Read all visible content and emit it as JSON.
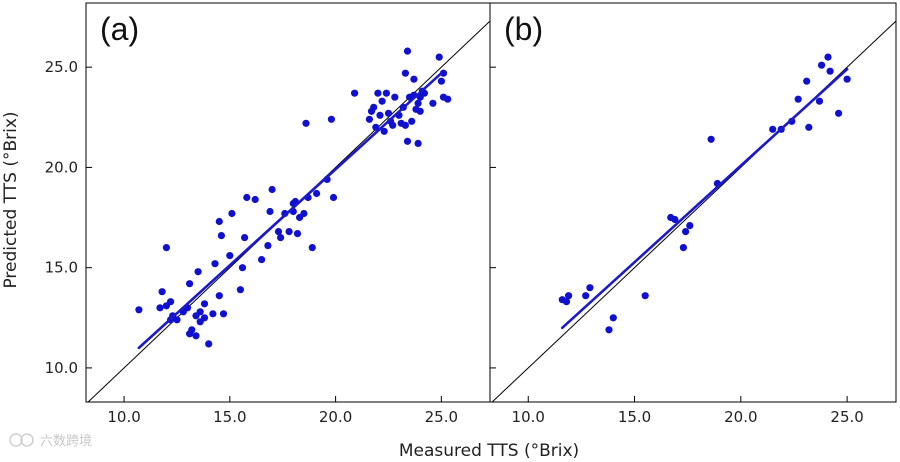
{
  "chart_data": [
    {
      "type": "scatter",
      "panel_label": "(a)",
      "xlim": [
        8.2,
        27.3
      ],
      "ylim": [
        8.3,
        28.2
      ],
      "x_ticks": [
        10.0,
        15.0,
        20.0,
        25.0
      ],
      "y_ticks": [
        10.0,
        15.0,
        20.0,
        25.0
      ],
      "identity_line": true,
      "regression_line": {
        "x": [
          10.7,
          25.0
        ],
        "y": [
          11.0,
          24.7
        ]
      },
      "marker_color": "#1010d0",
      "line_color": "#1a1acc",
      "points": [
        [
          10.7,
          12.9
        ],
        [
          11.7,
          13.0
        ],
        [
          11.8,
          13.8
        ],
        [
          12.0,
          13.1
        ],
        [
          12.0,
          16.0
        ],
        [
          12.2,
          12.4
        ],
        [
          12.2,
          13.3
        ],
        [
          12.3,
          12.6
        ],
        [
          12.5,
          12.4
        ],
        [
          12.8,
          12.8
        ],
        [
          13.0,
          13.0
        ],
        [
          13.1,
          11.7
        ],
        [
          13.1,
          14.2
        ],
        [
          13.2,
          11.9
        ],
        [
          13.4,
          12.6
        ],
        [
          13.4,
          11.6
        ],
        [
          13.5,
          14.8
        ],
        [
          13.6,
          12.3
        ],
        [
          13.6,
          12.8
        ],
        [
          13.8,
          12.5
        ],
        [
          13.8,
          13.2
        ],
        [
          14.0,
          11.2
        ],
        [
          14.2,
          12.7
        ],
        [
          14.3,
          15.2
        ],
        [
          14.5,
          13.6
        ],
        [
          14.5,
          17.3
        ],
        [
          14.6,
          16.6
        ],
        [
          14.7,
          12.7
        ],
        [
          15.0,
          15.6
        ],
        [
          15.1,
          17.7
        ],
        [
          15.5,
          13.9
        ],
        [
          15.6,
          15.0
        ],
        [
          15.7,
          16.5
        ],
        [
          15.8,
          18.5
        ],
        [
          16.2,
          18.4
        ],
        [
          16.5,
          15.4
        ],
        [
          16.8,
          16.1
        ],
        [
          16.9,
          17.8
        ],
        [
          17.0,
          18.9
        ],
        [
          17.3,
          16.8
        ],
        [
          17.4,
          16.5
        ],
        [
          17.6,
          17.7
        ],
        [
          17.8,
          16.8
        ],
        [
          18.0,
          18.2
        ],
        [
          18.0,
          17.8
        ],
        [
          18.1,
          18.3
        ],
        [
          18.2,
          16.7
        ],
        [
          18.3,
          17.5
        ],
        [
          18.5,
          17.7
        ],
        [
          18.6,
          22.2
        ],
        [
          18.7,
          18.5
        ],
        [
          18.9,
          16.0
        ],
        [
          19.1,
          18.7
        ],
        [
          19.6,
          19.4
        ],
        [
          19.8,
          22.4
        ],
        [
          19.9,
          18.5
        ],
        [
          20.9,
          23.7
        ],
        [
          21.6,
          22.4
        ],
        [
          21.7,
          22.8
        ],
        [
          21.8,
          23.0
        ],
        [
          21.9,
          22.0
        ],
        [
          22.0,
          23.7
        ],
        [
          22.1,
          22.6
        ],
        [
          22.2,
          23.3
        ],
        [
          22.3,
          21.8
        ],
        [
          22.4,
          23.7
        ],
        [
          22.5,
          22.7
        ],
        [
          22.6,
          22.3
        ],
        [
          22.7,
          22.1
        ],
        [
          22.8,
          23.5
        ],
        [
          23.0,
          22.6
        ],
        [
          23.1,
          22.2
        ],
        [
          23.2,
          23.0
        ],
        [
          23.3,
          24.7
        ],
        [
          23.3,
          22.1
        ],
        [
          23.4,
          25.8
        ],
        [
          23.4,
          21.3
        ],
        [
          23.5,
          23.5
        ],
        [
          23.6,
          22.3
        ],
        [
          23.7,
          24.4
        ],
        [
          23.7,
          23.6
        ],
        [
          23.8,
          22.9
        ],
        [
          23.9,
          23.2
        ],
        [
          23.9,
          21.2
        ],
        [
          24.0,
          23.5
        ],
        [
          24.0,
          22.8
        ],
        [
          24.1,
          23.8
        ],
        [
          24.2,
          23.7
        ],
        [
          24.6,
          23.2
        ],
        [
          24.9,
          25.5
        ],
        [
          25.0,
          24.3
        ],
        [
          25.1,
          24.7
        ],
        [
          25.1,
          23.5
        ],
        [
          25.3,
          23.4
        ]
      ]
    },
    {
      "type": "scatter",
      "panel_label": "(b)",
      "xlim": [
        8.2,
        27.3
      ],
      "ylim": [
        8.3,
        28.2
      ],
      "x_ticks": [
        10.0,
        15.0,
        20.0,
        25.0
      ],
      "y_ticks": [
        10.0,
        15.0,
        20.0,
        25.0
      ],
      "identity_line": true,
      "regression_line": {
        "x": [
          11.6,
          25.0
        ],
        "y": [
          12.0,
          24.9
        ]
      },
      "marker_color": "#1010d0",
      "line_color": "#1a1acc",
      "points": [
        [
          11.6,
          13.4
        ],
        [
          11.8,
          13.3
        ],
        [
          11.9,
          13.6
        ],
        [
          12.7,
          13.6
        ],
        [
          12.9,
          14.0
        ],
        [
          13.8,
          11.9
        ],
        [
          14.0,
          12.5
        ],
        [
          15.5,
          13.6
        ],
        [
          16.7,
          17.5
        ],
        [
          16.9,
          17.4
        ],
        [
          17.3,
          16.0
        ],
        [
          17.4,
          16.8
        ],
        [
          17.6,
          17.1
        ],
        [
          18.6,
          21.4
        ],
        [
          18.9,
          19.2
        ],
        [
          21.5,
          21.9
        ],
        [
          21.9,
          21.9
        ],
        [
          22.4,
          22.3
        ],
        [
          22.7,
          23.4
        ],
        [
          23.1,
          24.3
        ],
        [
          23.2,
          22.0
        ],
        [
          23.7,
          23.3
        ],
        [
          23.8,
          25.1
        ],
        [
          24.1,
          25.5
        ],
        [
          24.2,
          24.8
        ],
        [
          24.6,
          22.7
        ],
        [
          25.0,
          24.4
        ]
      ]
    }
  ],
  "axes": {
    "xlabel": "Measured TTS (°Brix)",
    "ylabel": "Predicted TTS (°Brix)"
  },
  "watermark": "六数跨境"
}
